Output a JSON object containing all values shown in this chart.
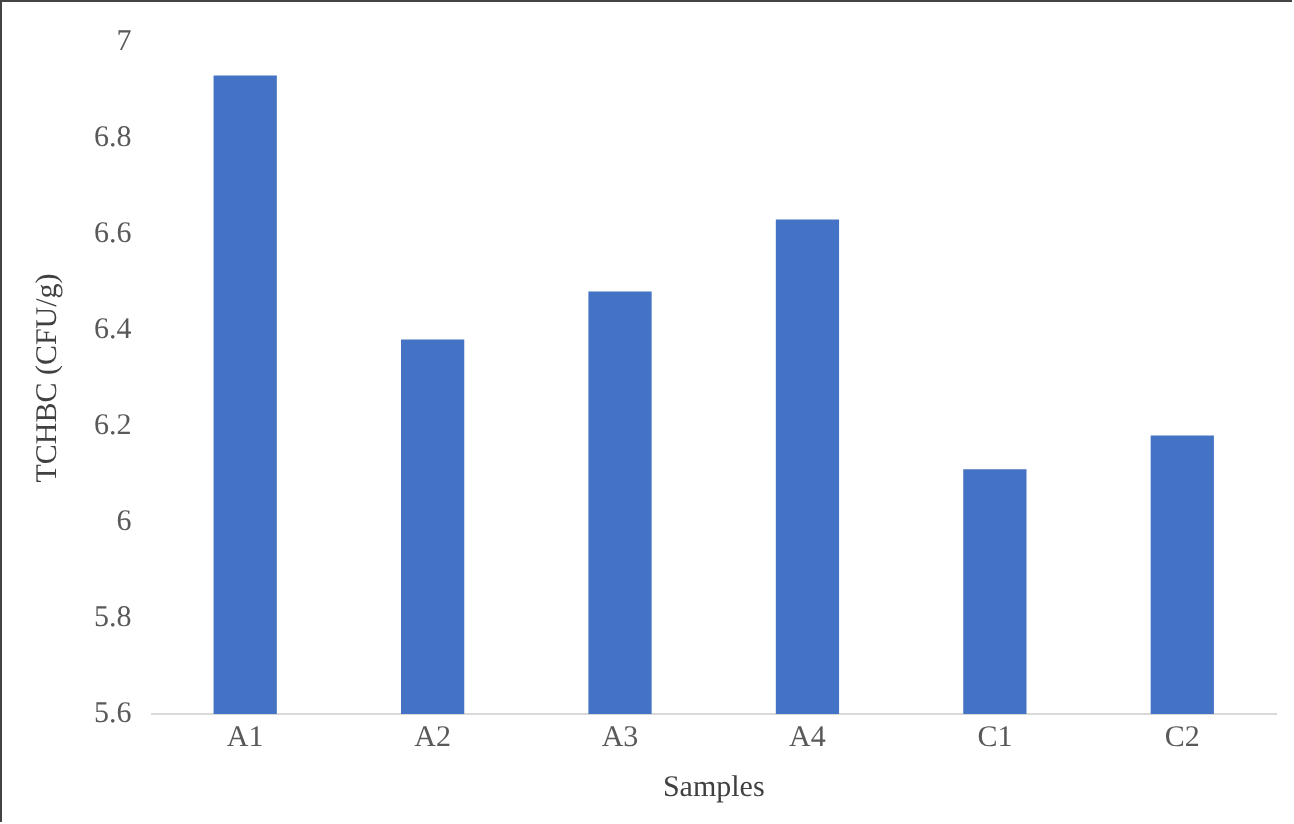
{
  "chart_data": {
    "type": "bar",
    "xlabel": "Samples",
    "ylabel": "TCHBC (CFU/g)",
    "categories": [
      "A1",
      "A2",
      "A3",
      "A4",
      "C1",
      "C2"
    ],
    "values": [
      6.93,
      6.38,
      6.48,
      6.63,
      6.11,
      6.18
    ],
    "color": "#4472c4",
    "ylim": [
      5.6,
      7
    ],
    "yticks": [
      5.6,
      5.8,
      6,
      6.2,
      6.4,
      6.6,
      6.8,
      7
    ],
    "grid": false,
    "legend": false
  }
}
